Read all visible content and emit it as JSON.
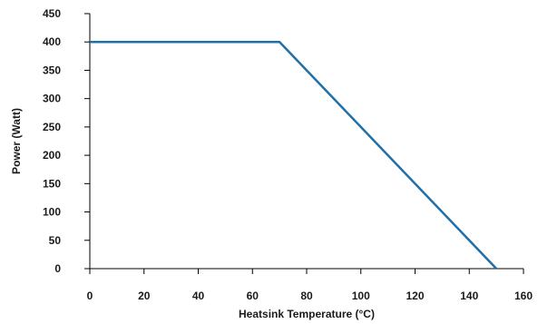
{
  "chart_data": {
    "type": "line",
    "title": "",
    "xlabel": "Heatsink Temperature (°C)",
    "ylabel": "Power (Watt)",
    "xlim": [
      0,
      160
    ],
    "ylim": [
      0,
      450
    ],
    "xticks": [
      0,
      20,
      40,
      60,
      80,
      100,
      120,
      140,
      160
    ],
    "yticks": [
      0,
      50,
      100,
      150,
      200,
      250,
      300,
      350,
      400,
      450
    ],
    "grid": false,
    "legend": "none",
    "series": [
      {
        "color": "#1f6fa8",
        "x": [
          0,
          70,
          150
        ],
        "y": [
          400,
          400,
          0
        ]
      }
    ]
  }
}
